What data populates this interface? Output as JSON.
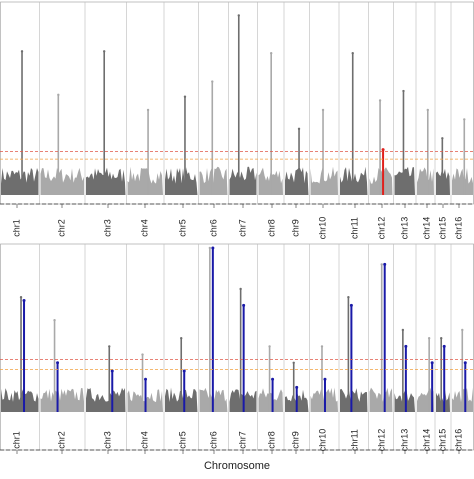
{
  "chart_data": [
    {
      "type": "scatter",
      "categories": [
        "chr1",
        "chr2",
        "chr3",
        "chr4",
        "chr5",
        "chr6",
        "chr7",
        "chr8",
        "chr9",
        "chr10",
        "chr11",
        "chr12",
        "chr13",
        "chr14",
        "chr15",
        "chr16"
      ],
      "values": [
        7.6,
        5.3,
        7.6,
        4.5,
        5.2,
        6,
        9.5,
        7.5,
        3.5,
        4.5,
        7.5,
        5,
        5.5,
        4.5,
        3,
        4
      ],
      "colors": [
        "#6e6e6e",
        "#a9a9a9"
      ],
      "highlight": {
        "color": "#e0201c",
        "values": [
          null,
          null,
          null,
          null,
          null,
          null,
          null,
          null,
          null,
          null,
          null,
          2.4,
          null,
          null,
          null,
          null
        ]
      },
      "thresholds": [
        {
          "value": 2.3,
          "color": "#e05a4a"
        },
        {
          "value": 1.9,
          "color": "#f0a040"
        }
      ],
      "ylim": [
        0,
        10
      ]
    },
    {
      "type": "scatter",
      "categories": [
        "chr1",
        "chr2",
        "chr3",
        "chr4",
        "chr5",
        "chr6",
        "chr7",
        "chr8",
        "chr9",
        "chr10",
        "chr11",
        "chr12",
        "chr13",
        "chr14",
        "chr15",
        "chr16"
      ],
      "values": [
        7,
        5.6,
        4,
        3.5,
        4.5,
        10,
        7.5,
        4,
        3,
        4,
        7,
        9,
        5,
        4.5,
        4.5,
        5
      ],
      "colors": [
        "#6e6e6e",
        "#a9a9a9"
      ],
      "highlight": {
        "color": "#1a1aa8",
        "values": [
          6.8,
          3,
          2.5,
          2,
          2.5,
          10,
          6.5,
          2,
          1.5,
          2,
          6.5,
          9,
          4,
          3,
          4,
          3
        ]
      },
      "thresholds": [
        {
          "value": 3.2,
          "color": "#e05a4a"
        },
        {
          "value": 2.6,
          "color": "#f0a040"
        }
      ],
      "ylim": [
        0,
        10
      ],
      "xlabel": "Chromosome"
    }
  ]
}
